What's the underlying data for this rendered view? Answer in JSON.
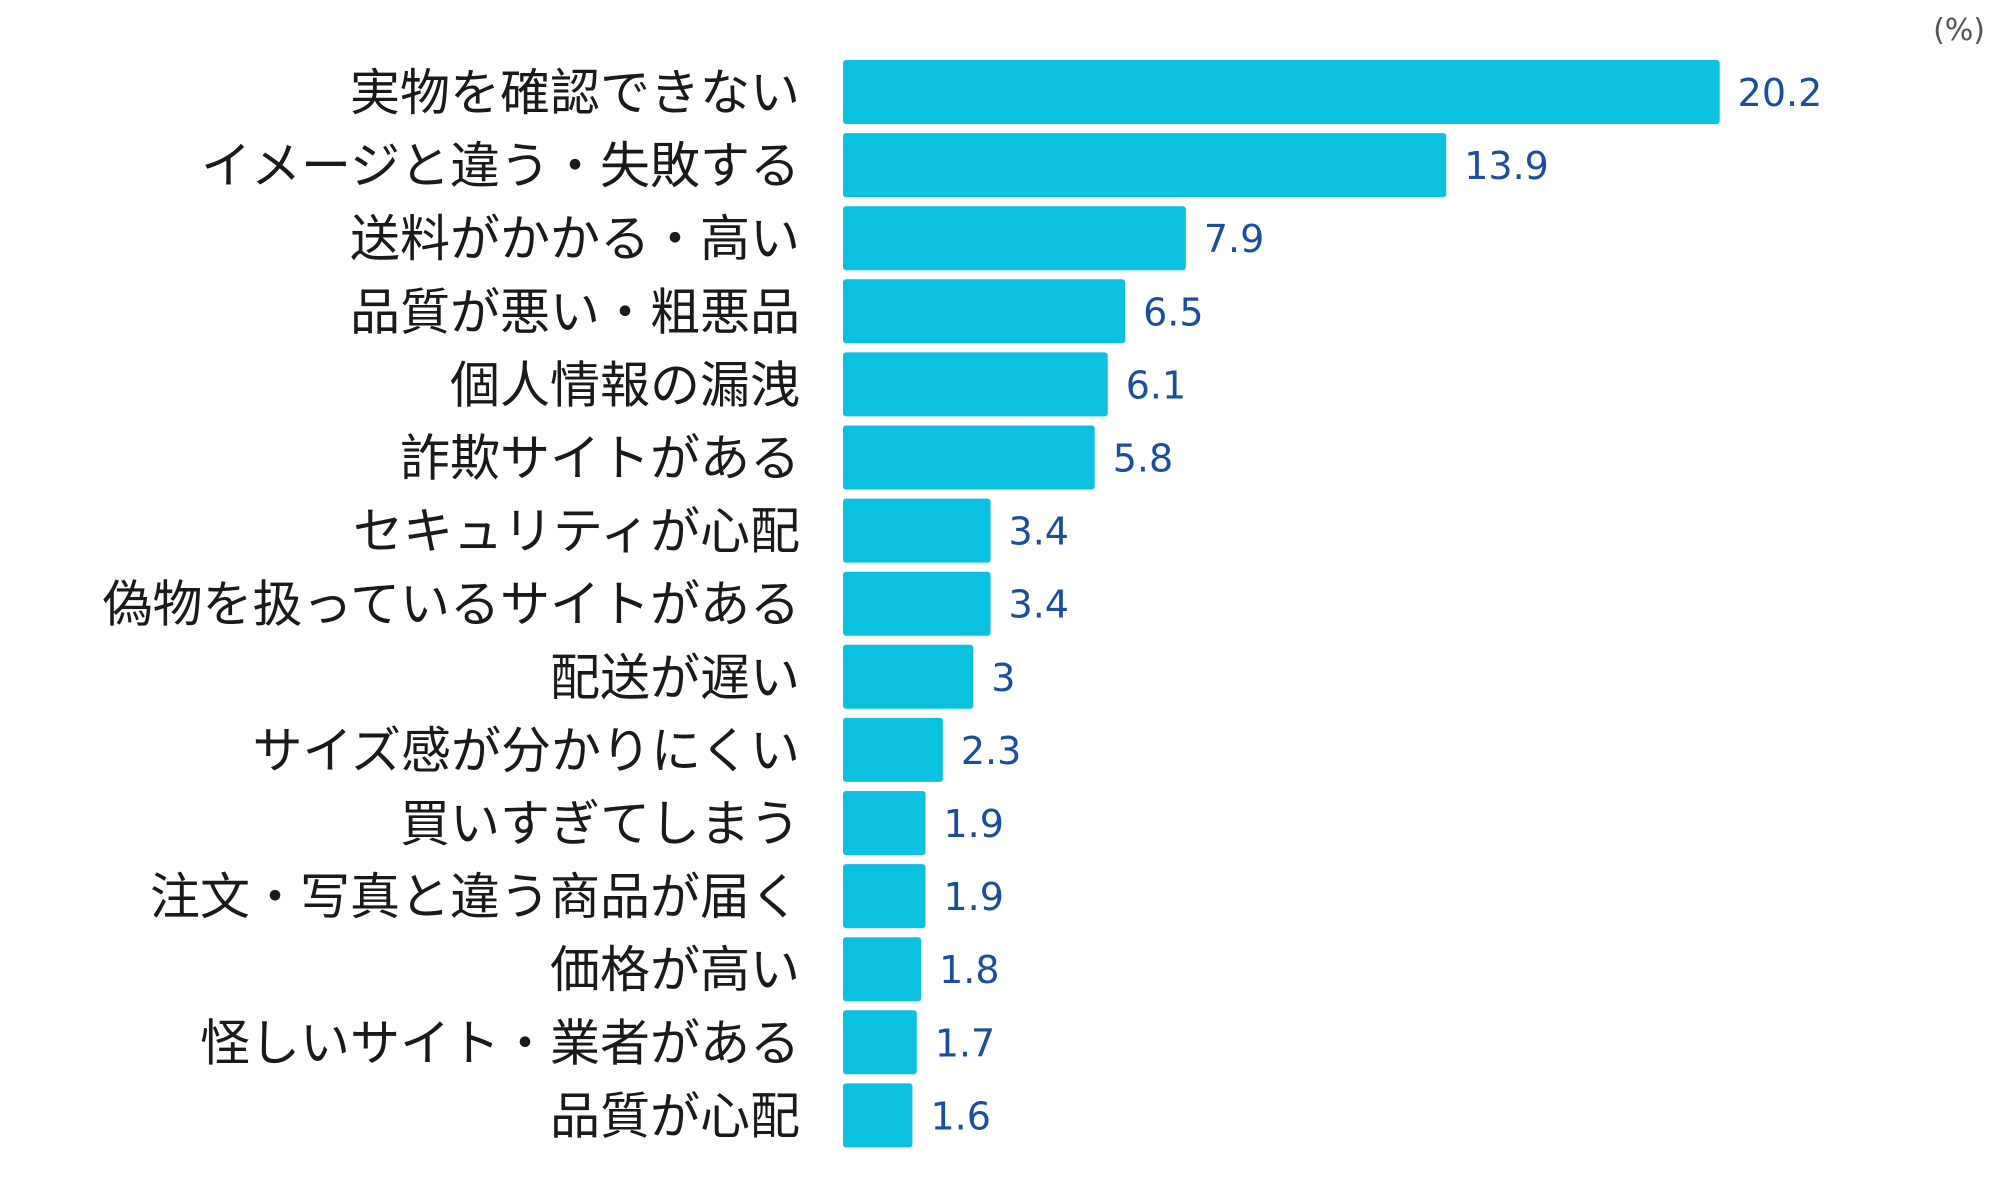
{
  "chart_data": {
    "type": "bar",
    "orientation": "horizontal",
    "unit": "(%)",
    "categories": [
      "実物を確認できない",
      "イメージと違う・失敗する",
      "送料がかかる・高い",
      "品質が悪い・粗悪品",
      "個人情報の漏洩",
      "詐欺サイトがある",
      "セキュリティが心配",
      "偽物を扱っているサイトがある",
      "配送が遅い",
      "サイズ感が分かりにくい",
      "買いすぎてしまう",
      "注文・写真と違う商品が届く",
      "価格が高い",
      "怪しいサイト・業者がある",
      "品質が心配"
    ],
    "values": [
      20.2,
      13.9,
      7.9,
      6.5,
      6.1,
      5.8,
      3.4,
      3.4,
      3,
      2.3,
      1.9,
      1.9,
      1.8,
      1.7,
      1.6
    ],
    "xlim": [
      0,
      25
    ],
    "grid": false,
    "legend": "none",
    "colors": {
      "bar": "#0cc0e0",
      "value_text": "#1b4ea0",
      "category_text": "#1a1a1a"
    }
  }
}
